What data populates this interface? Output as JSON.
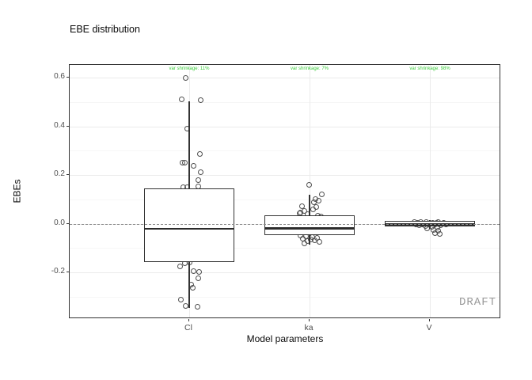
{
  "watermark": "DRAFT",
  "colors": {
    "annotation_green": "#3ecc3e",
    "box_stroke": "#333333",
    "point_stroke": "#4f4f4f",
    "dashed_reference": "#8c8c8c",
    "grid_major": "#ebebeb",
    "grid_minor": "#f6f6f6",
    "panel_border": "#333333",
    "tick_label_gray": "#4d4d4d",
    "watermark_gray": "#999999"
  },
  "chart_data": {
    "type": "boxplot",
    "title": "EBE distribution",
    "xlabel": "Model parameters",
    "ylabel": "EBEs",
    "ylim": [
      -0.39,
      0.65
    ],
    "yticks": [
      0.6,
      0.4,
      0.2,
      0,
      -0.2
    ],
    "ytick_labels": [
      "0.6",
      "0.4",
      "0.2",
      "0.0",
      "-0.2"
    ],
    "yticks_minor": [
      0.5,
      0.3,
      0.1,
      -0.1,
      -0.3
    ],
    "categories": [
      "Cl",
      "ka",
      "V"
    ],
    "grid": "horizontal major+minor, vertical at categories",
    "legend": "none",
    "reference_line_y": 0,
    "annotations": [
      {
        "category": "Cl",
        "text": "var shrinkage: 11%"
      },
      {
        "category": "ka",
        "text": "var shrinkage: 7%"
      },
      {
        "category": "V",
        "text": "var shrinkage: 98%"
      }
    ],
    "boxes": [
      {
        "category": "Cl",
        "whisker_low": -0.346,
        "q1": -0.158,
        "median": -0.021,
        "q3": 0.145,
        "whisker_high": 0.502
      },
      {
        "category": "ka",
        "whisker_low": -0.085,
        "q1": -0.047,
        "median": -0.018,
        "q3": 0.033,
        "whisker_high": 0.119
      },
      {
        "category": "V",
        "whisker_low": -0.022,
        "q1": -0.011,
        "median": -0.002,
        "q3": 0.01,
        "whisker_high": 0.016
      }
    ],
    "jitter_points": [
      {
        "category": "Cl",
        "points": [
          [
            -5,
            0.597
          ],
          [
            -10,
            0.509
          ],
          [
            14,
            0.506
          ],
          [
            -3,
            0.389
          ],
          [
            13,
            0.285
          ],
          [
            -9,
            0.249
          ],
          [
            -6,
            0.252
          ],
          [
            5,
            0.236
          ],
          [
            14,
            0.213
          ],
          [
            11,
            0.18
          ],
          [
            11,
            0.154
          ],
          [
            -8,
            0.151
          ],
          [
            -3,
            0.148
          ],
          [
            0,
            -0.158
          ],
          [
            -6,
            -0.164
          ],
          [
            -12,
            -0.174
          ],
          [
            5,
            -0.194
          ],
          [
            12,
            -0.197
          ],
          [
            11,
            -0.223
          ],
          [
            2,
            -0.249
          ],
          [
            4,
            -0.262
          ],
          [
            -11,
            -0.311
          ],
          [
            -5,
            -0.337
          ],
          [
            10,
            -0.343
          ]
        ]
      },
      {
        "category": "ka",
        "points": [
          [
            -1,
            0.158
          ],
          [
            15,
            0.119
          ],
          [
            7,
            0.1
          ],
          [
            11,
            0.094
          ],
          [
            5,
            0.088
          ],
          [
            -10,
            0.072
          ],
          [
            8,
            0.068
          ],
          [
            4,
            0.06
          ],
          [
            -7,
            0.052
          ],
          [
            -12,
            0.047
          ],
          [
            -13,
            0.042
          ],
          [
            -3,
            0.038
          ],
          [
            10,
            0.034
          ],
          [
            14,
            0.03
          ],
          [
            -12,
            -0.048
          ],
          [
            -5,
            -0.052
          ],
          [
            3,
            -0.055
          ],
          [
            9,
            -0.058
          ],
          [
            -9,
            -0.062
          ],
          [
            1,
            -0.065
          ],
          [
            6,
            -0.068
          ],
          [
            -3,
            -0.072
          ],
          [
            12,
            -0.075
          ],
          [
            -7,
            -0.08
          ]
        ]
      },
      {
        "category": "V",
        "points": [
          [
            -20,
            0.008
          ],
          [
            -12,
            0.006
          ],
          [
            -5,
            0.005
          ],
          [
            3,
            0.004
          ],
          [
            10,
            0.006
          ],
          [
            17,
            0.003
          ],
          [
            -16,
            0.002
          ],
          [
            -8,
            0.001
          ],
          [
            0,
            0
          ],
          [
            8,
            0.002
          ],
          [
            15,
            0.001
          ],
          [
            -18,
            -0.002
          ],
          [
            -10,
            -0.003
          ],
          [
            -2,
            -0.004
          ],
          [
            6,
            -0.003
          ],
          [
            13,
            -0.005
          ],
          [
            -14,
            -0.008
          ],
          [
            -6,
            -0.01
          ],
          [
            2,
            -0.012
          ],
          [
            9,
            -0.015
          ],
          [
            -4,
            -0.02
          ],
          [
            4,
            -0.025
          ],
          [
            10,
            -0.03
          ],
          [
            6,
            -0.038
          ],
          [
            12,
            -0.042
          ],
          [
            20,
            -0.004
          ]
        ]
      }
    ]
  }
}
